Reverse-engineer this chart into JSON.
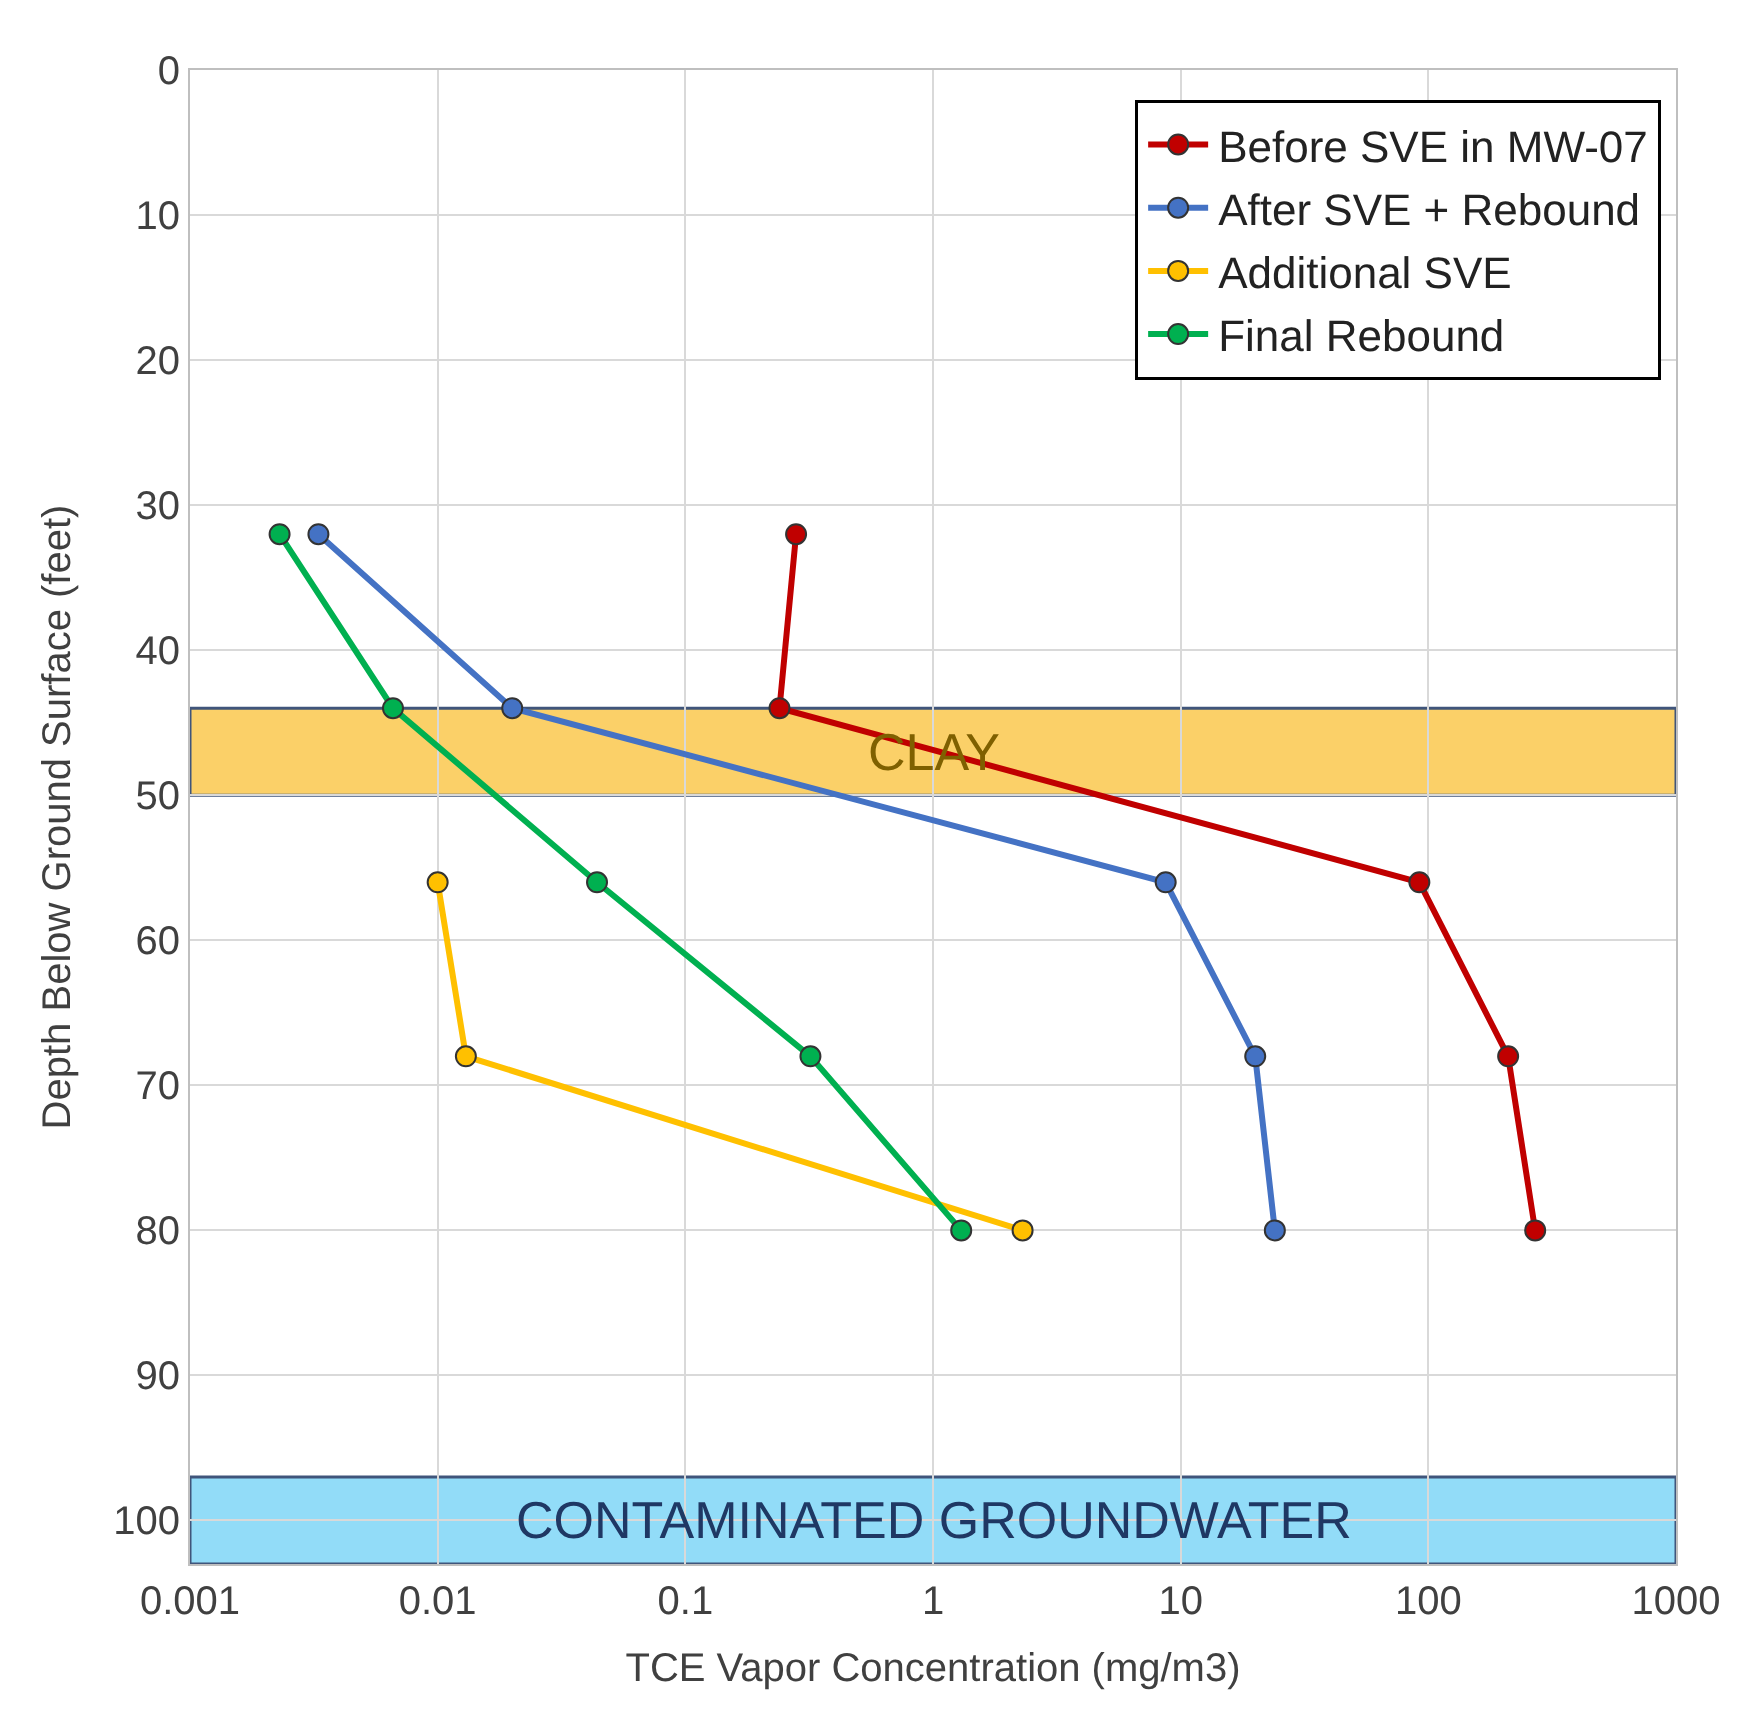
{
  "chart_data": {
    "type": "line",
    "xlabel": "TCE Vapor Concentration (mg/m3)",
    "ylabel": "Depth Below Ground Surface (feet)",
    "log": "x",
    "xlim": [
      0.001,
      1000
    ],
    "xticks": [
      0.001,
      0.01,
      0.1,
      1,
      10,
      100,
      1000
    ],
    "ylim": [
      103,
      0
    ],
    "yticks": [
      0,
      10,
      20,
      30,
      40,
      50,
      60,
      70,
      80,
      90,
      100
    ],
    "grid": true,
    "legend": "top right",
    "marker": "circle",
    "line_style": "solid",
    "series": [
      {
        "name": "Before SVE in MW-07",
        "color": "#c00000",
        "x": [
          0.28,
          0.24,
          92,
          210,
          270
        ],
        "values": [
          32,
          44,
          56,
          68,
          80
        ]
      },
      {
        "name": "After SVE + Rebound",
        "color": "#4472c4",
        "x": [
          0.0033,
          0.02,
          8.7,
          20,
          24
        ],
        "values": [
          32,
          44,
          56,
          68,
          80
        ]
      },
      {
        "name": "Additional SVE",
        "color": "#ffc000",
        "x": [
          0.01,
          0.013,
          2.3
        ],
        "values": [
          56,
          68,
          80
        ]
      },
      {
        "name": "Final Rebound",
        "color": "#00b050",
        "x": [
          0.0023,
          0.0066,
          0.044,
          0.32,
          1.3
        ],
        "values": [
          32,
          44,
          56,
          68,
          80
        ]
      }
    ],
    "bands": [
      {
        "axis": "y",
        "from": 44,
        "to": 50,
        "label": "CLAY",
        "color": "#fbc84e"
      },
      {
        "axis": "y",
        "from": 97,
        "to": 103,
        "label": "CONTAMINATED GROUNDWATER",
        "color": "#7fd6f7"
      }
    ]
  }
}
